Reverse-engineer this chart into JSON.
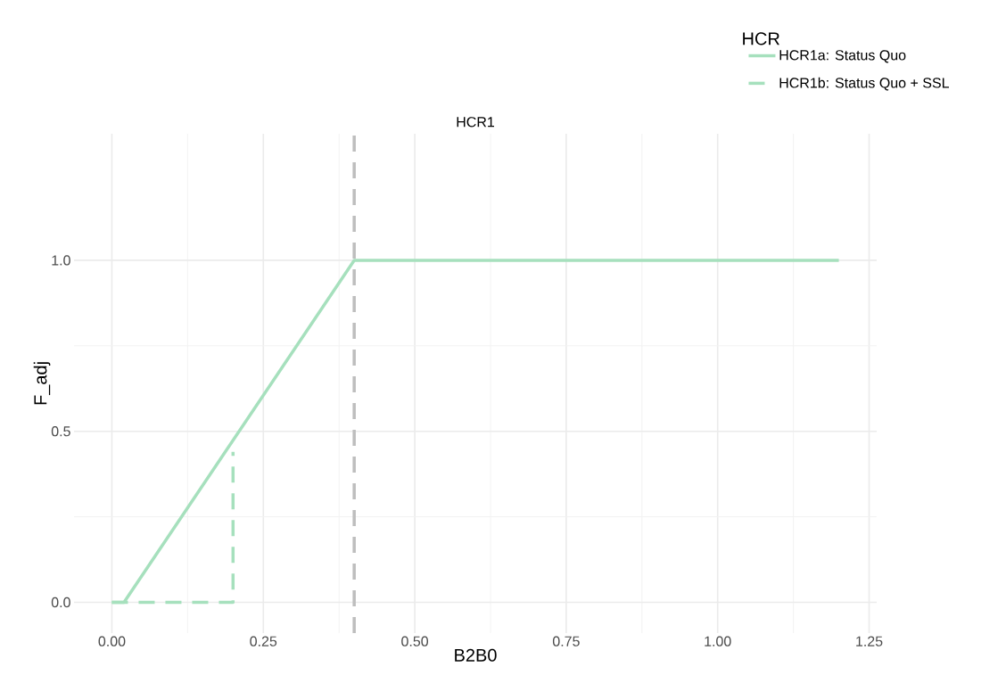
{
  "chart_data": {
    "type": "line",
    "title": "HCR1",
    "xlabel": "B2B0",
    "ylabel": "F_adj",
    "legend_title": "HCR",
    "xlim": [
      -0.0625,
      1.2625
    ],
    "ylim": [
      -0.09,
      1.37
    ],
    "xticks": [
      {
        "value": 0,
        "label": "0.00"
      },
      {
        "value": 0.25,
        "label": "0.25"
      },
      {
        "value": 0.5,
        "label": "0.50"
      },
      {
        "value": 0.75,
        "label": "0.75"
      },
      {
        "value": 1,
        "label": "1.00"
      },
      {
        "value": 1.25,
        "label": "1.25"
      }
    ],
    "yticks": [
      {
        "value": 0,
        "label": "0.0"
      },
      {
        "value": 0.5,
        "label": "0.5"
      },
      {
        "value": 1,
        "label": "1.0"
      }
    ],
    "grid": true,
    "legend": "top right",
    "series": [
      {
        "name": "HCR1a: Status Quo",
        "color": "#a6e0bd",
        "line_style": "solid",
        "x": [
          0,
          0.02,
          0.4,
          1.2
        ],
        "values": [
          0,
          0,
          1,
          1
        ]
      },
      {
        "name": "HCR1b: Status Quo + SSL",
        "color": "#a6e0bd",
        "line_style": "dashed",
        "x": [
          0,
          0.2,
          0.2
        ],
        "values": [
          0,
          0,
          0.44
        ]
      }
    ],
    "ref_lines": [
      {
        "axis": "x",
        "value": 0.4,
        "color": "#bebebe",
        "line_style": "dashed"
      }
    ]
  }
}
